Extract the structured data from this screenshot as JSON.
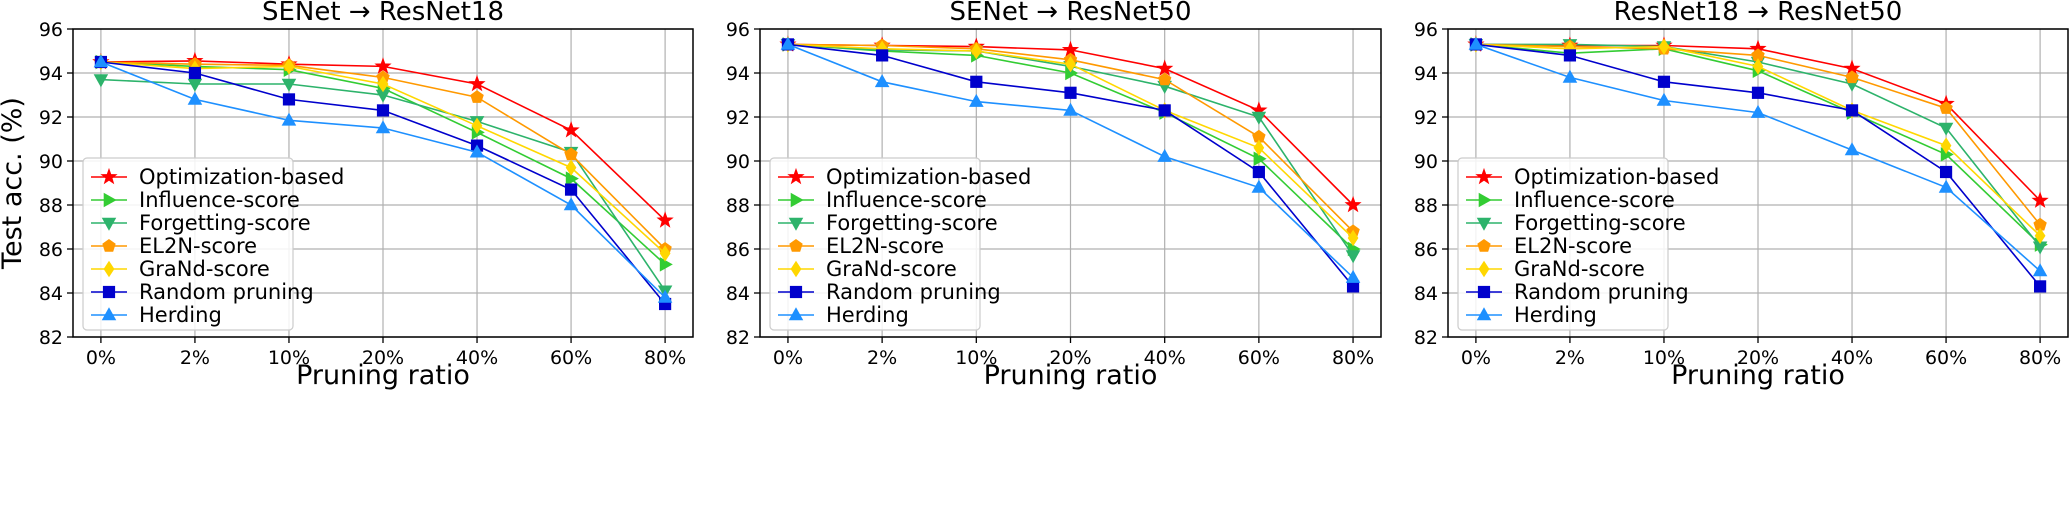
{
  "chart_data": [
    {
      "type": "line",
      "title": "SENet → ResNet18",
      "xlabel": "Pruning ratio",
      "ylabel": "Test acc. (%)",
      "categories": [
        "0%",
        "2%",
        "10%",
        "20%",
        "40%",
        "60%",
        "80%"
      ],
      "ylim": [
        82,
        96
      ],
      "yticks": [
        "82",
        "84",
        "86",
        "88",
        "90",
        "92",
        "94",
        "96"
      ],
      "grid": true,
      "legend": "lower-left",
      "series": [
        {
          "name": "Optimization-based",
          "marker": "star",
          "color": "#ff0000",
          "values": [
            94.5,
            94.55,
            94.4,
            94.3,
            93.5,
            91.4,
            87.3
          ]
        },
        {
          "name": "Influence-score",
          "marker": "triangle-right",
          "color": "#33cc33",
          "values": [
            94.5,
            94.3,
            94.15,
            93.3,
            91.3,
            89.2,
            85.3
          ]
        },
        {
          "name": "Forgetting-score",
          "marker": "triangle-down",
          "color": "#2db36b",
          "values": [
            93.7,
            93.5,
            93.5,
            93.0,
            91.8,
            90.4,
            84.1
          ]
        },
        {
          "name": "EL2N-score",
          "marker": "pentagon",
          "color": "#ff9900",
          "values": [
            94.5,
            94.4,
            94.35,
            93.8,
            92.9,
            90.3,
            86.0
          ]
        },
        {
          "name": "GraNd-score",
          "marker": "diamond",
          "color": "#ffd700",
          "values": [
            94.5,
            94.2,
            94.3,
            93.5,
            91.6,
            89.7,
            85.8
          ]
        },
        {
          "name": "Random pruning",
          "marker": "square",
          "color": "#0000cc",
          "values": [
            94.5,
            94.0,
            92.8,
            92.3,
            90.7,
            88.7,
            83.5
          ]
        },
        {
          "name": "Herding",
          "marker": "triangle-up",
          "color": "#1e90ff",
          "values": [
            94.5,
            92.8,
            91.85,
            91.5,
            90.4,
            88.0,
            83.8
          ]
        }
      ]
    },
    {
      "type": "line",
      "title": "SENet → ResNet50",
      "xlabel": "Pruning ratio",
      "ylabel": "",
      "categories": [
        "0%",
        "2%",
        "10%",
        "20%",
        "40%",
        "60%",
        "80%"
      ],
      "ylim": [
        82,
        96
      ],
      "yticks": [
        "82",
        "84",
        "86",
        "88",
        "90",
        "92",
        "94",
        "96"
      ],
      "grid": true,
      "legend": "lower-left",
      "series": [
        {
          "name": "Optimization-based",
          "marker": "star",
          "color": "#ff0000",
          "values": [
            95.3,
            95.25,
            95.2,
            95.05,
            94.2,
            92.3,
            88.0
          ]
        },
        {
          "name": "Influence-score",
          "marker": "triangle-right",
          "color": "#33cc33",
          "values": [
            95.3,
            95.0,
            94.8,
            94.0,
            92.2,
            90.1,
            86.0
          ]
        },
        {
          "name": "Forgetting-score",
          "marker": "triangle-down",
          "color": "#2db36b",
          "values": [
            95.3,
            95.05,
            95.0,
            94.3,
            93.4,
            92.0,
            85.7
          ]
        },
        {
          "name": "EL2N-score",
          "marker": "pentagon",
          "color": "#ff9900",
          "values": [
            95.3,
            95.25,
            95.1,
            94.6,
            93.7,
            91.1,
            86.8
          ]
        },
        {
          "name": "GraNd-score",
          "marker": "diamond",
          "color": "#ffd700",
          "values": [
            95.3,
            95.1,
            95.0,
            94.4,
            92.3,
            90.6,
            86.5
          ]
        },
        {
          "name": "Random pruning",
          "marker": "square",
          "color": "#0000cc",
          "values": [
            95.3,
            94.8,
            93.6,
            93.1,
            92.3,
            89.5,
            84.3
          ]
        },
        {
          "name": "Herding",
          "marker": "triangle-up",
          "color": "#1e90ff",
          "values": [
            95.3,
            93.6,
            92.7,
            92.3,
            90.2,
            88.8,
            84.7
          ]
        }
      ]
    },
    {
      "type": "line",
      "title": "ResNet18 → ResNet50",
      "xlabel": "Pruning ratio",
      "ylabel": "",
      "categories": [
        "0%",
        "2%",
        "10%",
        "20%",
        "40%",
        "60%",
        "80%"
      ],
      "ylim": [
        82,
        96
      ],
      "yticks": [
        "82",
        "84",
        "86",
        "88",
        "90",
        "92",
        "94",
        "96"
      ],
      "grid": true,
      "legend": "lower-left",
      "series": [
        {
          "name": "Optimization-based",
          "marker": "star",
          "color": "#ff0000",
          "values": [
            95.3,
            95.25,
            95.25,
            95.1,
            94.2,
            92.6,
            88.2
          ]
        },
        {
          "name": "Influence-score",
          "marker": "triangle-right",
          "color": "#33cc33",
          "values": [
            95.3,
            94.9,
            95.1,
            94.1,
            92.2,
            90.3,
            86.2
          ]
        },
        {
          "name": "Forgetting-score",
          "marker": "triangle-down",
          "color": "#2db36b",
          "values": [
            95.3,
            95.3,
            95.2,
            94.5,
            93.5,
            91.5,
            86.1
          ]
        },
        {
          "name": "EL2N-score",
          "marker": "pentagon",
          "color": "#ff9900",
          "values": [
            95.3,
            95.2,
            95.1,
            94.8,
            93.8,
            92.4,
            87.1
          ]
        },
        {
          "name": "GraNd-score",
          "marker": "diamond",
          "color": "#ffd700",
          "values": [
            95.3,
            95.1,
            95.2,
            94.3,
            92.3,
            90.7,
            86.6
          ]
        },
        {
          "name": "Random pruning",
          "marker": "square",
          "color": "#0000cc",
          "values": [
            95.3,
            94.8,
            93.6,
            93.1,
            92.3,
            89.5,
            84.3
          ]
        },
        {
          "name": "Herding",
          "marker": "triangle-up",
          "color": "#1e90ff",
          "values": [
            95.3,
            93.8,
            92.75,
            92.2,
            90.5,
            88.8,
            85.0
          ]
        }
      ]
    }
  ]
}
